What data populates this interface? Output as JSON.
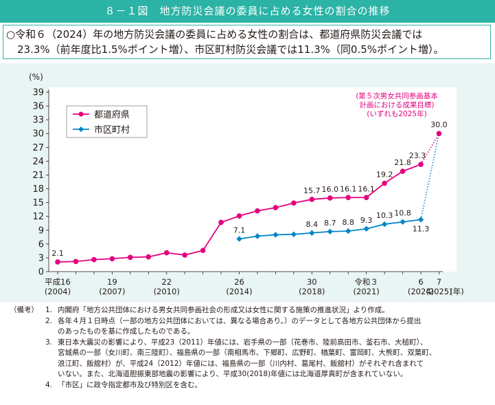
{
  "title": "８－１図　地方防災会議の委員に占める女性の割合の推移",
  "summary": {
    "line1": "○令和６（2024）年の地方防災会議の委員に占める女性の割合は、都道府県防災会議では",
    "line2": "23.3%（前年度比1.5%ポイント増）、市区町村防災会議では11.3%（同0.5%ポイント増）。"
  },
  "chart_data": {
    "type": "line",
    "ylabel": "(%)",
    "xlabel_suffix": "(年)",
    "ylim": [
      0,
      39
    ],
    "yticks": [
      0,
      3,
      6,
      9,
      12,
      15,
      18,
      21,
      24,
      27,
      30,
      33,
      36,
      39
    ],
    "x_years": [
      2004,
      2005,
      2006,
      2007,
      2008,
      2009,
      2010,
      2011,
      2012,
      2013,
      2014,
      2015,
      2016,
      2017,
      2018,
      2019,
      2020,
      2021,
      2022,
      2023,
      2024,
      2025
    ],
    "xtick_labels": [
      {
        "year": 2004,
        "top": "平成16",
        "bottom": "(2004)"
      },
      {
        "year": 2007,
        "top": "19",
        "bottom": "(2007)"
      },
      {
        "year": 2010,
        "top": "22",
        "bottom": "(2010)"
      },
      {
        "year": 2014,
        "top": "26",
        "bottom": "(2014)"
      },
      {
        "year": 2018,
        "top": "30",
        "bottom": "(2018)"
      },
      {
        "year": 2021,
        "top": "令和３",
        "bottom": "(2021)"
      },
      {
        "year": 2024,
        "top": "6",
        "bottom": "(2024)"
      },
      {
        "year": 2025,
        "top": "7",
        "bottom": "(2025)"
      }
    ],
    "legend": "top-left",
    "series": [
      {
        "name": "都道府県",
        "color": "#e4007f",
        "marker": "circle",
        "x": [
          2004,
          2005,
          2006,
          2007,
          2008,
          2009,
          2010,
          2011,
          2012,
          2013,
          2014,
          2015,
          2016,
          2017,
          2018,
          2019,
          2020,
          2021,
          2022,
          2023,
          2024
        ],
        "values": [
          2.1,
          2.2,
          2.6,
          2.8,
          3.1,
          3.2,
          4.1,
          3.6,
          4.6,
          10.7,
          12.1,
          13.2,
          13.9,
          14.9,
          15.7,
          16.0,
          16.1,
          16.1,
          19.2,
          21.8,
          23.3
        ],
        "labels": {
          "2004": "2.1",
          "2018": "15.7",
          "2019": "16.0",
          "2020": "16.1",
          "2021": "16.1",
          "2022": "19.2",
          "2023": "21.8",
          "2024": "23.3"
        }
      },
      {
        "name": "市区町村",
        "color": "#0086c8",
        "marker": "diamond",
        "x": [
          2014,
          2015,
          2016,
          2017,
          2018,
          2019,
          2020,
          2021,
          2022,
          2023,
          2024
        ],
        "values": [
          7.1,
          7.7,
          8.0,
          8.1,
          8.4,
          8.7,
          8.8,
          9.3,
          10.3,
          10.8,
          11.3
        ],
        "labels": {
          "2014": "7.1",
          "2018": "8.4",
          "2019": "8.7",
          "2020": "8.8",
          "2021": "9.3",
          "2022": "10.3",
          "2023": "10.8",
          "2024": "11.3"
        }
      }
    ],
    "target": {
      "year": 2025,
      "value": 30.0,
      "value_label": "30.0",
      "annotation": [
        "(第５次男女共同参画基本",
        "計画における成果目標)",
        "(いずれも2025年)"
      ],
      "color": "#e4007f"
    }
  },
  "notes": {
    "header": "（備考）",
    "items": [
      {
        "num": "1.",
        "lines": [
          "内閣府「地方公共団体における男女共同参画社会の形成又は女性に関する施策の推進状況」より作成。"
        ]
      },
      {
        "num": "2.",
        "lines": [
          "各年４月１日時点（一部の地方公共団体においては、異なる場合あり。）のデータとして各地方公共団体から提出",
          "のあったものを基に作成したものである。"
        ]
      },
      {
        "num": "3.",
        "lines": [
          "東日本大震災の影響により、平成23（2011）年値には、岩手県の一部（花巻市、陸前高田市、釜石市、大槌町）、",
          "宮城県の一部（女川町、南三陸町）、福島県の一部（南相馬市、下郷町、広野町、楢葉町、富岡町、大熊町、双葉町、",
          "浪江町、飯舘村）が、平成24（2012）年値には、福島県の一部（川内村、葛尾村、飯舘村）がそれぞれ含まれて",
          "いない。また、北海道胆振東部地震の影響により、平成30(2018)年値には北海道厚真町が含まれていない。"
        ]
      },
      {
        "num": "4.",
        "lines": [
          "「市区」に政令指定都市及び特別区を含む。"
        ]
      }
    ]
  }
}
